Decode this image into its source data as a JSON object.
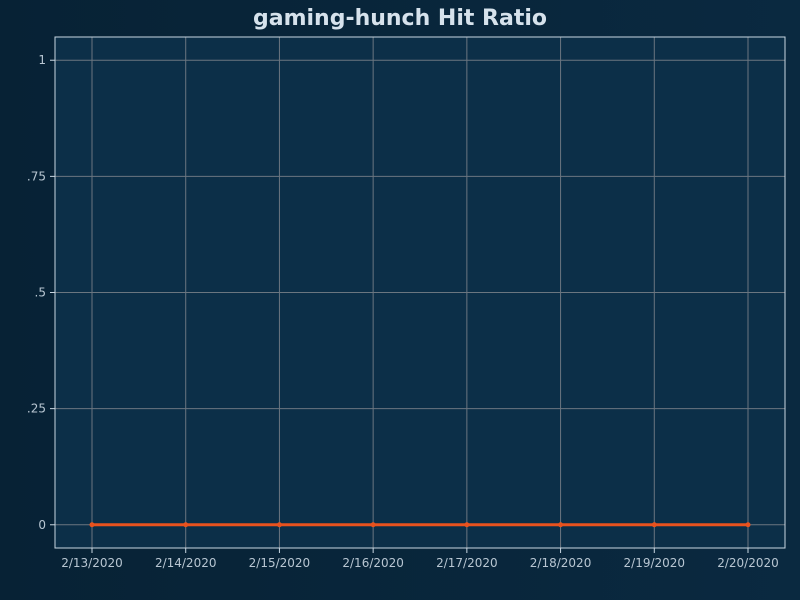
{
  "chart_data": {
    "type": "line",
    "title": "gaming-hunch Hit Ratio",
    "xlabel": "",
    "ylabel": "",
    "x": [
      "2/13/2020",
      "2/14/2020",
      "2/15/2020",
      "2/16/2020",
      "2/17/2020",
      "2/18/2020",
      "2/19/2020",
      "2/20/2020"
    ],
    "series": [
      {
        "values": [
          0,
          0,
          0,
          0,
          0,
          0,
          0,
          0
        ],
        "color": "#e8521e"
      }
    ],
    "ylim": [
      -0.05,
      1.05
    ],
    "y_ticks": [
      {
        "value": 0,
        "label": "0"
      },
      {
        "value": 0.25,
        "label": ".25"
      },
      {
        "value": 0.5,
        "label": ".5"
      },
      {
        "value": 0.75,
        "label": ".75"
      },
      {
        "value": 1,
        "label": "1"
      }
    ],
    "grid": true,
    "legend": "none",
    "colors": {
      "background": "#082538",
      "plot_background": "#0c2f48",
      "grid": "#6b7680",
      "frame": "#c9d7e2",
      "text": "#b8c6d2",
      "title": "#d6e2ec"
    }
  }
}
